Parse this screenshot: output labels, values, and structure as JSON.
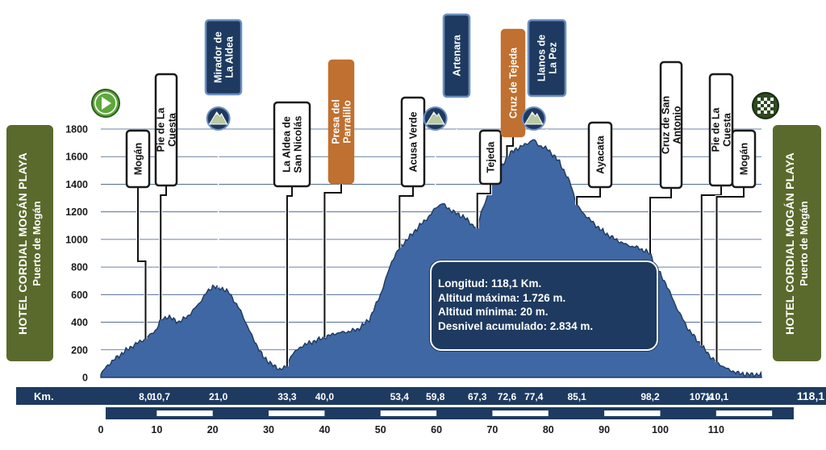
{
  "left_panel": {
    "line1": "HOTEL CORDIAL MOGÁN PLAYA",
    "line2": "Puerto de Mogán"
  },
  "right_panel": {
    "line1": "HOTEL CORDIAL MOGÁN PLAYA",
    "line2": "Puerto de Mogán"
  },
  "info": {
    "length": "Longitud: 118,1 Km.",
    "max_alt": "Altitud máxima: 1.726 m.",
    "min_alt": "Altitud mínima: 20 m.",
    "ascent": "Desnivel  acumulado: 2.834 m."
  },
  "icons": {
    "start": "start-flag-icon",
    "finish": "finish-checkered-flag-icon",
    "summit": "mountain-summit-icon"
  },
  "colors": {
    "profile_fill": "#3f67a3",
    "profile_dark": "#1e3a60",
    "climb_label": "#1e3a60",
    "sprint_label": "#c07030",
    "start_icon": "#5fa83c",
    "side_panel": "#5a6a2c"
  },
  "chart_data": {
    "type": "area",
    "title": "",
    "xlabel": "Km.",
    "ylabel": "",
    "xlim": [
      0,
      118.1
    ],
    "ylim": [
      0,
      1800
    ],
    "y_ticks": [
      "0",
      "200",
      "400",
      "600",
      "800",
      "1000",
      "1200",
      "1400",
      "1600",
      "1800"
    ],
    "x_ticks": [
      "0",
      "10",
      "20",
      "30",
      "40",
      "50",
      "60",
      "70",
      "80",
      "90",
      "100",
      "110"
    ],
    "km_row_label": "Km.",
    "km_marks": [
      "8,0",
      "10,7",
      "21,0",
      "33,3",
      "40,0",
      "53,4",
      "59,8",
      "67,3",
      "72,6",
      "77,4",
      "85,1",
      "98,2",
      "107,4",
      "110,1",
      "118,1"
    ],
    "profile": {
      "x": [
        0,
        1,
        3,
        5,
        7,
        8,
        10,
        10.7,
        12,
        14,
        16,
        18,
        19,
        20,
        21,
        22,
        23,
        25,
        27,
        29,
        31,
        32,
        33.3,
        34,
        36,
        38,
        40,
        42,
        44,
        46,
        48,
        50,
        52,
        53.4,
        55,
        57,
        59,
        59.8,
        61,
        63,
        65,
        66,
        67.3,
        68,
        70,
        72,
        72.6,
        74,
        76,
        77.4,
        78,
        80,
        82,
        84,
        85.1,
        86,
        88,
        90,
        92,
        94,
        96,
        98.2,
        99,
        101,
        103,
        105,
        107.4,
        109,
        110.1,
        112,
        114,
        115,
        116,
        117,
        118.1
      ],
      "y": [
        20,
        80,
        150,
        210,
        260,
        280,
        350,
        420,
        440,
        400,
        460,
        560,
        620,
        660,
        650,
        640,
        610,
        480,
        300,
        150,
        80,
        60,
        80,
        160,
        230,
        260,
        290,
        320,
        330,
        350,
        420,
        600,
        840,
        940,
        1010,
        1100,
        1180,
        1230,
        1260,
        1200,
        1160,
        1120,
        1080,
        1200,
        1400,
        1550,
        1600,
        1650,
        1690,
        1726,
        1690,
        1650,
        1560,
        1400,
        1250,
        1200,
        1120,
        1050,
        1000,
        960,
        940,
        900,
        820,
        680,
        500,
        350,
        230,
        150,
        110,
        60,
        30,
        25,
        20,
        22,
        20
      ]
    },
    "markers": [
      {
        "name": "Mogán",
        "km": 8.0,
        "category": "town",
        "label_pos": "left-1"
      },
      {
        "name": "Pie de La Cuesta",
        "km": 10.7,
        "category": "town",
        "label_pos": "left-2"
      },
      {
        "name": "Mirador de La Aldea",
        "km": 21.0,
        "category": "climb"
      },
      {
        "name": "La Aldea de San Nicolás",
        "km": 33.3,
        "category": "town"
      },
      {
        "name": "Presa del Parralillo",
        "km": 40.0,
        "category": "sprint"
      },
      {
        "name": "Acusa Verde",
        "km": 53.4,
        "category": "town"
      },
      {
        "name": "Artenara",
        "km": 59.8,
        "category": "climb"
      },
      {
        "name": "Tejeda",
        "km": 67.3,
        "category": "town"
      },
      {
        "name": "Cruz de Tejeda",
        "km": 72.6,
        "category": "sprint"
      },
      {
        "name": "Llanos de La Pez",
        "km": 77.4,
        "category": "climb"
      },
      {
        "name": "Ayacata",
        "km": 85.1,
        "category": "town"
      },
      {
        "name": "Cruz de San Antonio",
        "km": 98.2,
        "category": "town"
      },
      {
        "name": "Pie de La Cuesta",
        "km": 107.4,
        "category": "town"
      },
      {
        "name": "Mogán",
        "km": 110.1,
        "category": "town"
      }
    ]
  }
}
